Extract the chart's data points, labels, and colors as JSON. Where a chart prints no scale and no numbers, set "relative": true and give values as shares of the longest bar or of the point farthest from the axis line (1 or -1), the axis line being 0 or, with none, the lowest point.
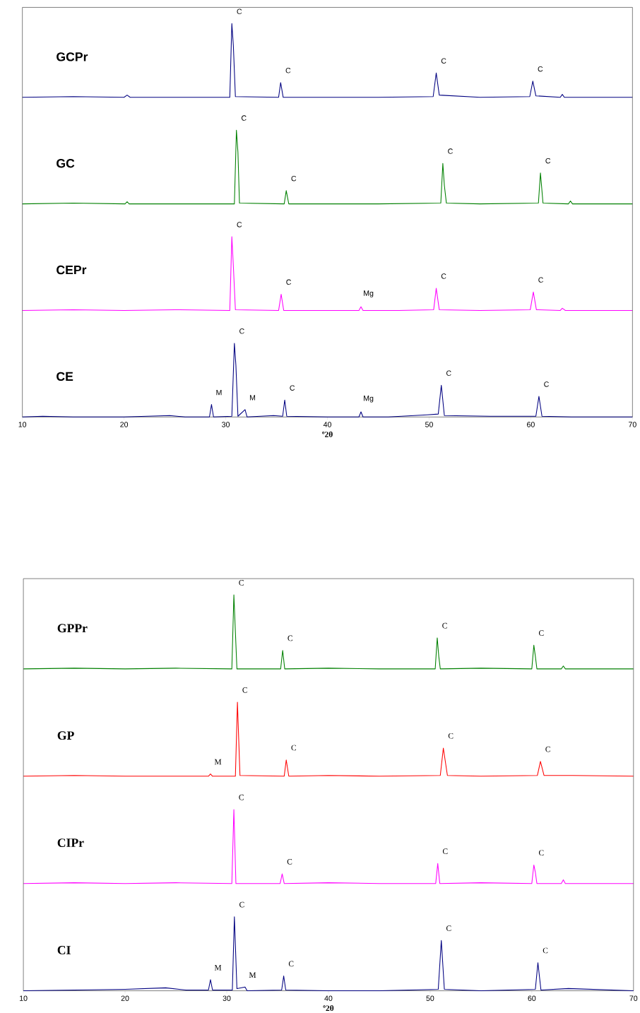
{
  "chart_data": [
    {
      "type": "line",
      "relative": true,
      "xlim": [
        10,
        70
      ],
      "tick_labels": false,
      "legend": false,
      "x": [
        10,
        15,
        20.0,
        20.3,
        20.6,
        25,
        30.4,
        30.6,
        30.75,
        30.95,
        35.2,
        35.4,
        35.65,
        40,
        45,
        50.4,
        50.7,
        51.0,
        55,
        59.9,
        60.2,
        60.5,
        62.9,
        63.1,
        63.3,
        70
      ],
      "series": [
        {
          "name": "GCPr",
          "color": "#000080",
          "values": [
            0,
            0.01,
            0,
            0.03,
            0,
            0,
            0,
            1.0,
            0.7,
            0.01,
            0,
            0.2,
            0,
            0,
            0,
            0.01,
            0.33,
            0.03,
            0,
            0.01,
            0.22,
            0.02,
            0,
            0.04,
            0,
            0
          ]
        }
      ],
      "annotations": [
        {
          "text": "C",
          "x": 30.6,
          "y": 1.0
        },
        {
          "text": "C",
          "x": 35.4,
          "y": 0.2
        },
        {
          "text": "C",
          "x": 50.7,
          "y": 0.33
        },
        {
          "text": "C",
          "x": 60.2,
          "y": 0.22
        }
      ]
    },
    {
      "type": "line",
      "relative": true,
      "xlim": [
        10,
        70
      ],
      "tick_labels": false,
      "legend": false,
      "x": [
        10,
        15,
        20.1,
        20.3,
        20.5,
        25,
        30.85,
        31.05,
        31.2,
        31.35,
        35.75,
        35.95,
        36.2,
        40,
        45,
        51.15,
        51.35,
        51.5,
        51.7,
        55,
        60.75,
        60.95,
        61.2,
        63.7,
        63.9,
        64.1,
        70
      ],
      "series": [
        {
          "name": "GC",
          "color": "#008000",
          "values": [
            0,
            0.01,
            0,
            0.03,
            0,
            0,
            0,
            1.0,
            0.7,
            0.01,
            0,
            0.18,
            0,
            0,
            0,
            0.01,
            0.55,
            0.25,
            0.01,
            0,
            0.01,
            0.42,
            0.01,
            0,
            0.04,
            0,
            0
          ]
        }
      ],
      "annotations": [
        {
          "text": "C",
          "x": 31.05,
          "y": 1.0
        },
        {
          "text": "C",
          "x": 35.95,
          "y": 0.18
        },
        {
          "text": "C",
          "x": 51.35,
          "y": 0.55
        },
        {
          "text": "C",
          "x": 60.95,
          "y": 0.42
        }
      ]
    },
    {
      "type": "line",
      "relative": true,
      "xlim": [
        10,
        70
      ],
      "tick_labels": false,
      "legend": false,
      "x": [
        10,
        15,
        20,
        25,
        30.4,
        30.6,
        30.75,
        30.95,
        35.2,
        35.45,
        35.7,
        40,
        43.1,
        43.3,
        43.5,
        47,
        50.45,
        50.7,
        51.0,
        55,
        59.95,
        60.25,
        60.55,
        62.9,
        63.1,
        63.4,
        70
      ],
      "series": [
        {
          "name": "CEPr",
          "color": "#ff00ff",
          "values": [
            0,
            0.01,
            0,
            0.01,
            0,
            1.0,
            0.6,
            0.01,
            0,
            0.22,
            0,
            0,
            0,
            0.05,
            0,
            0,
            0.01,
            0.3,
            0.01,
            0,
            0.01,
            0.25,
            0.01,
            0,
            0.03,
            0,
            0
          ]
        }
      ],
      "annotations": [
        {
          "text": "C",
          "x": 30.6,
          "y": 1.0
        },
        {
          "text": "C",
          "x": 35.45,
          "y": 0.22
        },
        {
          "text": "Mg",
          "x": 43.3,
          "y": 0.05
        },
        {
          "text": "C",
          "x": 50.7,
          "y": 0.3
        },
        {
          "text": "C",
          "x": 60.25,
          "y": 0.25
        }
      ]
    },
    {
      "type": "line",
      "relative": true,
      "xlim": [
        10,
        70
      ],
      "xticks": [
        10,
        20,
        30,
        40,
        50,
        60,
        70
      ],
      "xlabel": "º2θ",
      "legend": false,
      "x": [
        10,
        12,
        15,
        20,
        24.5,
        26,
        28.4,
        28.6,
        28.8,
        30.6,
        30.85,
        31.0,
        31.2,
        31.9,
        32.1,
        34.7,
        35.6,
        35.8,
        36.0,
        40,
        43.1,
        43.3,
        43.5,
        46,
        49.8,
        50.9,
        51.2,
        51.5,
        56,
        60.5,
        60.8,
        61.1,
        64,
        70
      ],
      "series": [
        {
          "name": "CE",
          "color": "#000080",
          "values": [
            0,
            0.01,
            0,
            0,
            0.02,
            0,
            0,
            0.17,
            0,
            0.01,
            1.0,
            0.7,
            0.01,
            0.1,
            0,
            0.02,
            0.01,
            0.23,
            0.01,
            0,
            0,
            0.07,
            0,
            0,
            0.03,
            0.04,
            0.43,
            0.02,
            0.01,
            0.01,
            0.28,
            0.01,
            0,
            0
          ]
        }
      ],
      "annotations": [
        {
          "text": "M",
          "x": 28.6,
          "y": 0.17
        },
        {
          "text": "C",
          "x": 30.85,
          "y": 1.0
        },
        {
          "text": "M",
          "x": 31.9,
          "y": 0.1
        },
        {
          "text": "C",
          "x": 35.8,
          "y": 0.23
        },
        {
          "text": "Mg",
          "x": 43.3,
          "y": 0.07
        },
        {
          "text": "C",
          "x": 51.2,
          "y": 0.43
        },
        {
          "text": "C",
          "x": 60.8,
          "y": 0.28
        }
      ]
    },
    {
      "type": "line",
      "relative": true,
      "xlim": [
        10,
        70
      ],
      "tick_labels": false,
      "legend": false,
      "x": [
        10,
        15,
        20,
        25,
        30.5,
        30.7,
        30.85,
        31.0,
        35.3,
        35.5,
        35.7,
        40,
        45,
        50.5,
        50.7,
        50.85,
        51.0,
        55,
        60.0,
        60.2,
        60.35,
        60.5,
        62.9,
        63.1,
        63.3,
        70
      ],
      "series": [
        {
          "name": "GPPr",
          "color": "#008000",
          "values": [
            0,
            0.01,
            0,
            0.01,
            0,
            1.0,
            0.5,
            0,
            0,
            0.25,
            0,
            0.01,
            0,
            0,
            0.42,
            0.17,
            0,
            0.01,
            0,
            0.32,
            0.17,
            0,
            0,
            0.04,
            0,
            0
          ]
        }
      ],
      "annotations": [
        {
          "text": "C",
          "x": 30.7,
          "y": 1.0
        },
        {
          "text": "C",
          "x": 35.5,
          "y": 0.25
        },
        {
          "text": "C",
          "x": 50.7,
          "y": 0.42
        },
        {
          "text": "C",
          "x": 60.2,
          "y": 0.32
        }
      ]
    },
    {
      "type": "line",
      "relative": true,
      "xlim": [
        10,
        70
      ],
      "tick_labels": false,
      "legend": false,
      "x": [
        10,
        15,
        20,
        25,
        28.2,
        28.4,
        28.6,
        30.85,
        31.05,
        31.3,
        35.65,
        35.85,
        36.1,
        40,
        45,
        51.0,
        51.3,
        51.7,
        55,
        60.55,
        60.85,
        61.2,
        64,
        70
      ],
      "series": [
        {
          "name": "GP",
          "color": "#ff0000",
          "values": [
            0,
            0.01,
            0,
            0,
            0,
            0.03,
            0,
            0,
            1.0,
            0.01,
            0,
            0.22,
            0,
            0.01,
            0,
            0.01,
            0.38,
            0.01,
            0,
            0.01,
            0.2,
            0.01,
            0.01,
            0
          ]
        }
      ],
      "annotations": [
        {
          "text": "C",
          "x": 31.05,
          "y": 1.0
        },
        {
          "text": "M",
          "x": 28.4,
          "y": 0.03
        },
        {
          "text": "C",
          "x": 35.85,
          "y": 0.22
        },
        {
          "text": "C",
          "x": 51.3,
          "y": 0.38
        },
        {
          "text": "C",
          "x": 60.85,
          "y": 0.2
        }
      ]
    },
    {
      "type": "line",
      "relative": true,
      "xlim": [
        10,
        70
      ],
      "tick_labels": false,
      "legend": false,
      "x": [
        10,
        15,
        20,
        25,
        30.5,
        30.7,
        30.9,
        35.25,
        35.45,
        35.65,
        40,
        45,
        50.55,
        50.75,
        50.95,
        55,
        60.0,
        60.2,
        60.35,
        60.5,
        62.9,
        63.1,
        63.3,
        70
      ],
      "series": [
        {
          "name": "CIPr",
          "color": "#ff00ff",
          "values": [
            0,
            0.01,
            0,
            0.01,
            0,
            1.0,
            0,
            0,
            0.13,
            0,
            0.01,
            0,
            0,
            0.27,
            0,
            0.01,
            0,
            0.25,
            0.15,
            0,
            0,
            0.05,
            0,
            0
          ]
        }
      ],
      "annotations": [
        {
          "text": "C",
          "x": 30.7,
          "y": 1.0
        },
        {
          "text": "C",
          "x": 35.45,
          "y": 0.13
        },
        {
          "text": "C",
          "x": 50.75,
          "y": 0.27
        },
        {
          "text": "C",
          "x": 60.2,
          "y": 0.25
        }
      ]
    },
    {
      "type": "line",
      "relative": true,
      "xlim": [
        10,
        70
      ],
      "xticks": [
        10,
        20,
        30,
        40,
        50,
        60,
        70
      ],
      "xlabel": "º2θ",
      "legend": false,
      "x": [
        10,
        15,
        20,
        24,
        26,
        28.2,
        28.4,
        28.6,
        30.55,
        30.75,
        31.0,
        31.8,
        32.0,
        35.4,
        35.6,
        35.8,
        40,
        45,
        50.8,
        51.1,
        51.4,
        55,
        60.35,
        60.6,
        60.9,
        63.6,
        70
      ],
      "series": [
        {
          "name": "CI",
          "color": "#000080",
          "values": [
            0,
            0.01,
            0.02,
            0.04,
            0.01,
            0.01,
            0.15,
            0.01,
            0.01,
            1.0,
            0.03,
            0.05,
            0,
            0.01,
            0.2,
            0.01,
            0,
            0,
            0.02,
            0.68,
            0.02,
            0,
            0.02,
            0.38,
            0.01,
            0.03,
            0
          ]
        }
      ],
      "annotations": [
        {
          "text": "M",
          "x": 28.4,
          "y": 0.15
        },
        {
          "text": "C",
          "x": 30.75,
          "y": 1.0
        },
        {
          "text": "M",
          "x": 31.8,
          "y": 0.05
        },
        {
          "text": "C",
          "x": 35.6,
          "y": 0.2
        },
        {
          "text": "C",
          "x": 51.1,
          "y": 0.68
        },
        {
          "text": "C",
          "x": 60.6,
          "y": 0.38
        }
      ]
    }
  ]
}
